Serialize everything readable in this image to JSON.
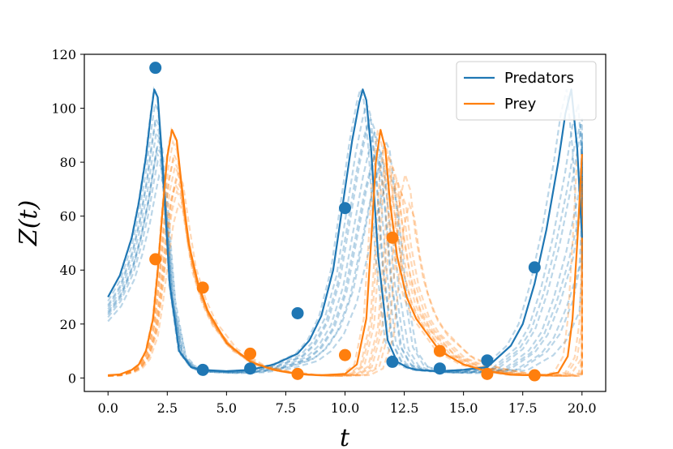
{
  "chart_data": {
    "type": "line",
    "xlabel": "t",
    "ylabel": "Z(t)",
    "xlim": [
      -1.0,
      21.0
    ],
    "ylim": [
      -5,
      120
    ],
    "xticks": [
      "0.0",
      "2.5",
      "5.0",
      "7.5",
      "10.0",
      "12.5",
      "15.0",
      "17.5",
      "20.0"
    ],
    "yticks": [
      "0",
      "20",
      "40",
      "60",
      "80",
      "100",
      "120"
    ],
    "legend_position": "top-right",
    "colors": {
      "predators": "#1f77b4",
      "prey": "#ff7f0e"
    },
    "series": [
      {
        "name": "Predators",
        "color": "#1f77b4",
        "x": [
          0.0,
          0.5,
          1.0,
          1.3,
          1.6,
          1.8,
          1.95,
          2.1,
          2.3,
          2.6,
          3.0,
          3.5,
          4.0,
          5.0,
          6.0,
          7.0,
          8.0,
          8.5,
          9.0,
          9.5,
          10.0,
          10.3,
          10.6,
          10.75,
          10.9,
          11.1,
          11.4,
          11.8,
          12.2,
          12.6,
          13.0,
          14.0,
          15.0,
          16.0,
          17.0,
          17.5,
          18.0,
          18.5,
          19.0,
          19.3,
          19.55,
          19.8,
          20.0
        ],
        "y": [
          30,
          38,
          52,
          65,
          82,
          97,
          107,
          104,
          80,
          35,
          10,
          4,
          3,
          2.5,
          3,
          5,
          9,
          14,
          23,
          40,
          70,
          88,
          102,
          107,
          103,
          85,
          45,
          14,
          6,
          4,
          3,
          2.5,
          3,
          4,
          12,
          20,
          35,
          55,
          80,
          98,
          107,
          85,
          52
        ]
      },
      {
        "name": "Prey",
        "color": "#ff7f0e",
        "x": [
          0.0,
          0.5,
          1.0,
          1.3,
          1.6,
          1.9,
          2.1,
          2.3,
          2.5,
          2.7,
          2.9,
          3.1,
          3.4,
          3.8,
          4.2,
          5.0,
          6.0,
          7.0,
          8.0,
          9.0,
          10.0,
          10.5,
          10.9,
          11.1,
          11.3,
          11.5,
          11.7,
          11.9,
          12.2,
          12.6,
          13.0,
          14.0,
          15.0,
          16.0,
          17.0,
          18.0,
          18.5,
          19.0,
          19.4,
          19.6,
          19.8,
          20.0
        ],
        "y": [
          1,
          1.3,
          3,
          5,
          10,
          22,
          40,
          62,
          82,
          92,
          88,
          72,
          50,
          35,
          25,
          13,
          6,
          3,
          1.5,
          1,
          1.5,
          5,
          22,
          50,
          80,
          92,
          85,
          65,
          45,
          30,
          22,
          10,
          5,
          2.5,
          1.2,
          1,
          1.1,
          2,
          8,
          22,
          50,
          83
        ]
      }
    ],
    "observations": [
      {
        "name": "Predators",
        "color": "#1f77b4",
        "x": [
          2,
          4,
          6,
          8,
          10,
          12,
          14,
          16,
          18
        ],
        "y": [
          115,
          3,
          3.5,
          24,
          63,
          6,
          3.5,
          6.5,
          41
        ]
      },
      {
        "name": "Prey",
        "color": "#ff7f0e",
        "x": [
          2,
          4,
          6,
          8,
          10,
          12,
          14,
          16,
          18
        ],
        "y": [
          44,
          33.5,
          9,
          1.5,
          8.5,
          52,
          10,
          1.5,
          1
        ]
      }
    ]
  }
}
